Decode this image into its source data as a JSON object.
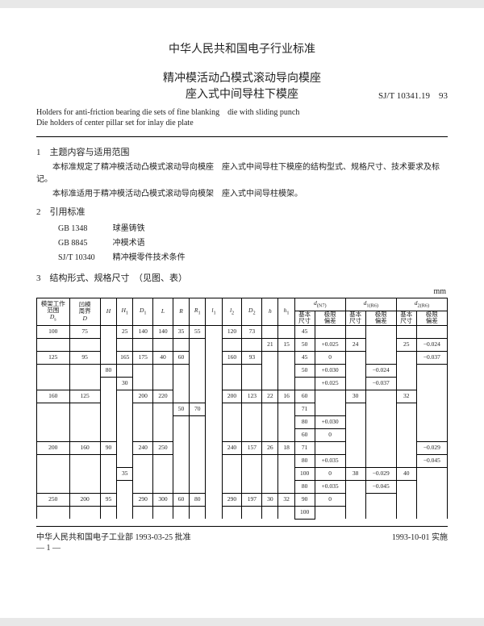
{
  "header": "中华人民共和国电子行业标准",
  "title": {
    "cn1": "精冲模活动凸模式滚动导向模座",
    "cn2": "座入式中间导柱下模座",
    "code": "SJ/T 10341.19　93",
    "en1": "Holders for anti-friction bearing die sets of fine blanking　die with sliding punch",
    "en2": "Die holders of center pillar set for inlay die plate"
  },
  "sections": {
    "s1": {
      "num": "1",
      "title": "主题内容与适用范围",
      "p1": "本标准规定了精冲模活动凸模式滚动导向模座　座入式中间导柱下模座的结构型式、规格尺寸、技术要求及标记。",
      "p2": "本标准适用于精冲模活动凸模式滚动导向模架　座入式中间导柱模架。"
    },
    "s2": {
      "num": "2",
      "title": "引用标准",
      "refs": [
        {
          "code": "GB 1348",
          "name": "球墨铸铁"
        },
        {
          "code": "GB 8845",
          "name": "冲模术语"
        },
        {
          "code": "SJ/T 10340",
          "name": "精冲模零件技术条件"
        }
      ]
    },
    "s3": {
      "num": "3",
      "title": "结构形式、规格尺寸　（见图、表）"
    }
  },
  "unit": "mm",
  "table": {
    "head": {
      "c1a": "模架工作",
      "c1b": "范围",
      "c1c": "D",
      "c1s": "s",
      "c2a": "凹模",
      "c2b": "周界",
      "c2c": "D",
      "c3": "H",
      "c4": "H",
      "c4s": "1",
      "c5": "D",
      "c5s": "1",
      "c6": "L",
      "c7": "R",
      "c8": "R",
      "c8s": "1",
      "c9": "l",
      "c9s": "1",
      "c10": "l",
      "c10s": "2",
      "c11": "D",
      "c11s": "2",
      "c12": "h",
      "c13": "h",
      "c13s": "1",
      "d": "d",
      "d_sz": "(N7)",
      "d1": "d",
      "d1_sz": "1(R6)",
      "d2": "d",
      "d2_sz": "2(R6)",
      "base": "基本",
      "size": "尺寸",
      "tol": "极限",
      "dev": "偏差"
    },
    "rows": [
      {
        "Ds": "100",
        "D": "75",
        "H": "",
        "H1": "25",
        "D1": "140",
        "L": "140",
        "R": "35",
        "R1": "55",
        "l1": "",
        "l2": "120",
        "D2": "73",
        "h": "",
        "h1": "",
        "db": "45",
        "dt": "",
        "d1b": "",
        "d1t": "",
        "d2b": "",
        "d2t": ""
      },
      {
        "Ds": "",
        "D": "",
        "H": "",
        "H1": "",
        "D1": "",
        "L": "",
        "R": "",
        "R1": "",
        "l1": "",
        "l2": "",
        "D2": "",
        "h": "21",
        "h1": "15",
        "db": "50",
        "dt": "+0.025",
        "d1b": "24",
        "d1t": "",
        "d2b": "25",
        "d2t": "−0.024"
      },
      {
        "Ds": "125",
        "D": "95",
        "H": "",
        "H1": "165",
        "D1": "175",
        "L": "40",
        "R": "60",
        "R1": "",
        "l1": "",
        "l2": "160",
        "D2": "93",
        "h": "",
        "h1": "",
        "db": "45",
        "dt": "0",
        "d1b": "",
        "d1t": "",
        "d2b": "",
        "d2t": "−0.037"
      },
      {
        "Ds": "",
        "D": "",
        "H": "80",
        "H1": "",
        "D1": "",
        "L": "",
        "R": "",
        "R1": "",
        "l1": "",
        "l2": "",
        "D2": "",
        "h": "",
        "h1": "",
        "db": "50",
        "dt": "+0.030",
        "d1b": "",
        "d1t": "−0.024",
        "d2b": "",
        "d2t": ""
      },
      {
        "Ds": "",
        "D": "",
        "H": "",
        "H1": "30",
        "D1": "",
        "L": "",
        "R": "",
        "R1": "",
        "l1": "",
        "l2": "",
        "D2": "",
        "h": "",
        "h1": "",
        "db": "",
        "dt": "+0.025",
        "d1b": "",
        "d1t": "−0.037",
        "d2b": "",
        "d2t": ""
      },
      {
        "Ds": "160",
        "D": "125",
        "H": "",
        "H1": "",
        "D1": "200",
        "L": "220",
        "R": "",
        "R1": "",
        "l1": "",
        "l2": "200",
        "D2": "123",
        "h": "22",
        "h1": "16",
        "db": "60",
        "dt": "",
        "d1b": "30",
        "d1t": "",
        "d2b": "32",
        "d2t": ""
      },
      {
        "Ds": "",
        "D": "",
        "H": "",
        "H1": "",
        "D1": "",
        "L": "",
        "R": "50",
        "R1": "70",
        "l1": "",
        "l2": "",
        "D2": "",
        "h": "",
        "h1": "",
        "db": "71",
        "dt": "",
        "d1b": "",
        "d1t": "",
        "d2b": "",
        "d2t": ""
      },
      {
        "Ds": "",
        "D": "",
        "H": "",
        "H1": "",
        "D1": "",
        "L": "",
        "R": "",
        "R1": "",
        "l1": "",
        "l2": "",
        "D2": "",
        "h": "",
        "h1": "",
        "db": "80",
        "dt": "+0.030",
        "d1b": "",
        "d1t": "",
        "d2b": "",
        "d2t": ""
      },
      {
        "Ds": "",
        "D": "",
        "H": "",
        "H1": "",
        "D1": "",
        "L": "",
        "R": "",
        "R1": "",
        "l1": "",
        "l2": "",
        "D2": "",
        "h": "",
        "h1": "",
        "db": "60",
        "dt": "0",
        "d1b": "",
        "d1t": "",
        "d2b": "",
        "d2t": ""
      },
      {
        "Ds": "200",
        "D": "160",
        "H": "90",
        "H1": "",
        "D1": "240",
        "L": "250",
        "R": "",
        "R1": "",
        "l1": "",
        "l2": "240",
        "D2": "157",
        "h": "26",
        "h1": "18",
        "db": "71",
        "dt": "",
        "d1b": "",
        "d1t": "",
        "d2b": "",
        "d2t": "−0.029"
      },
      {
        "Ds": "",
        "D": "",
        "H": "",
        "H1": "",
        "D1": "",
        "L": "",
        "R": "",
        "R1": "",
        "l1": "",
        "l2": "",
        "D2": "",
        "h": "",
        "h1": "",
        "db": "80",
        "dt": "+0.035",
        "d1b": "",
        "d1t": "",
        "d2b": "",
        "d2t": "−0.045"
      },
      {
        "Ds": "",
        "D": "",
        "H": "",
        "H1": "35",
        "D1": "",
        "L": "",
        "R": "",
        "R1": "",
        "l1": "",
        "l2": "",
        "D2": "",
        "h": "",
        "h1": "",
        "db": "100",
        "dt": "0",
        "d1b": "38",
        "d1t": "−0.029",
        "d2b": "40",
        "d2t": ""
      },
      {
        "Ds": "",
        "D": "",
        "H": "",
        "H1": "",
        "D1": "",
        "L": "",
        "R": "",
        "R1": "",
        "l1": "",
        "l2": "",
        "D2": "",
        "h": "",
        "h1": "",
        "db": "80",
        "dt": "+0.035",
        "d1b": "",
        "d1t": "−0.045",
        "d2b": "",
        "d2t": ""
      },
      {
        "Ds": "250",
        "D": "200",
        "H": "95",
        "H1": "",
        "D1": "290",
        "L": "300",
        "R": "60",
        "R1": "80",
        "l1": "",
        "l2": "290",
        "D2": "197",
        "h": "30",
        "h1": "32",
        "db": "90",
        "dt": "0",
        "d1b": "",
        "d1t": "",
        "d2b": "",
        "d2t": ""
      },
      {
        "Ds": "",
        "D": "",
        "H": "",
        "H1": "",
        "D1": "",
        "L": "",
        "R": "",
        "R1": "",
        "l1": "",
        "l2": "",
        "D2": "",
        "h": "",
        "h1": "",
        "db": "100",
        "dt": "",
        "d1b": "",
        "d1t": "",
        "d2b": "",
        "d2t": ""
      }
    ]
  },
  "footer": {
    "left": "中华人民共和国电子工业部 1993-03-25 批准",
    "right": "1993-10-01 实施",
    "page": "— 1 —"
  }
}
